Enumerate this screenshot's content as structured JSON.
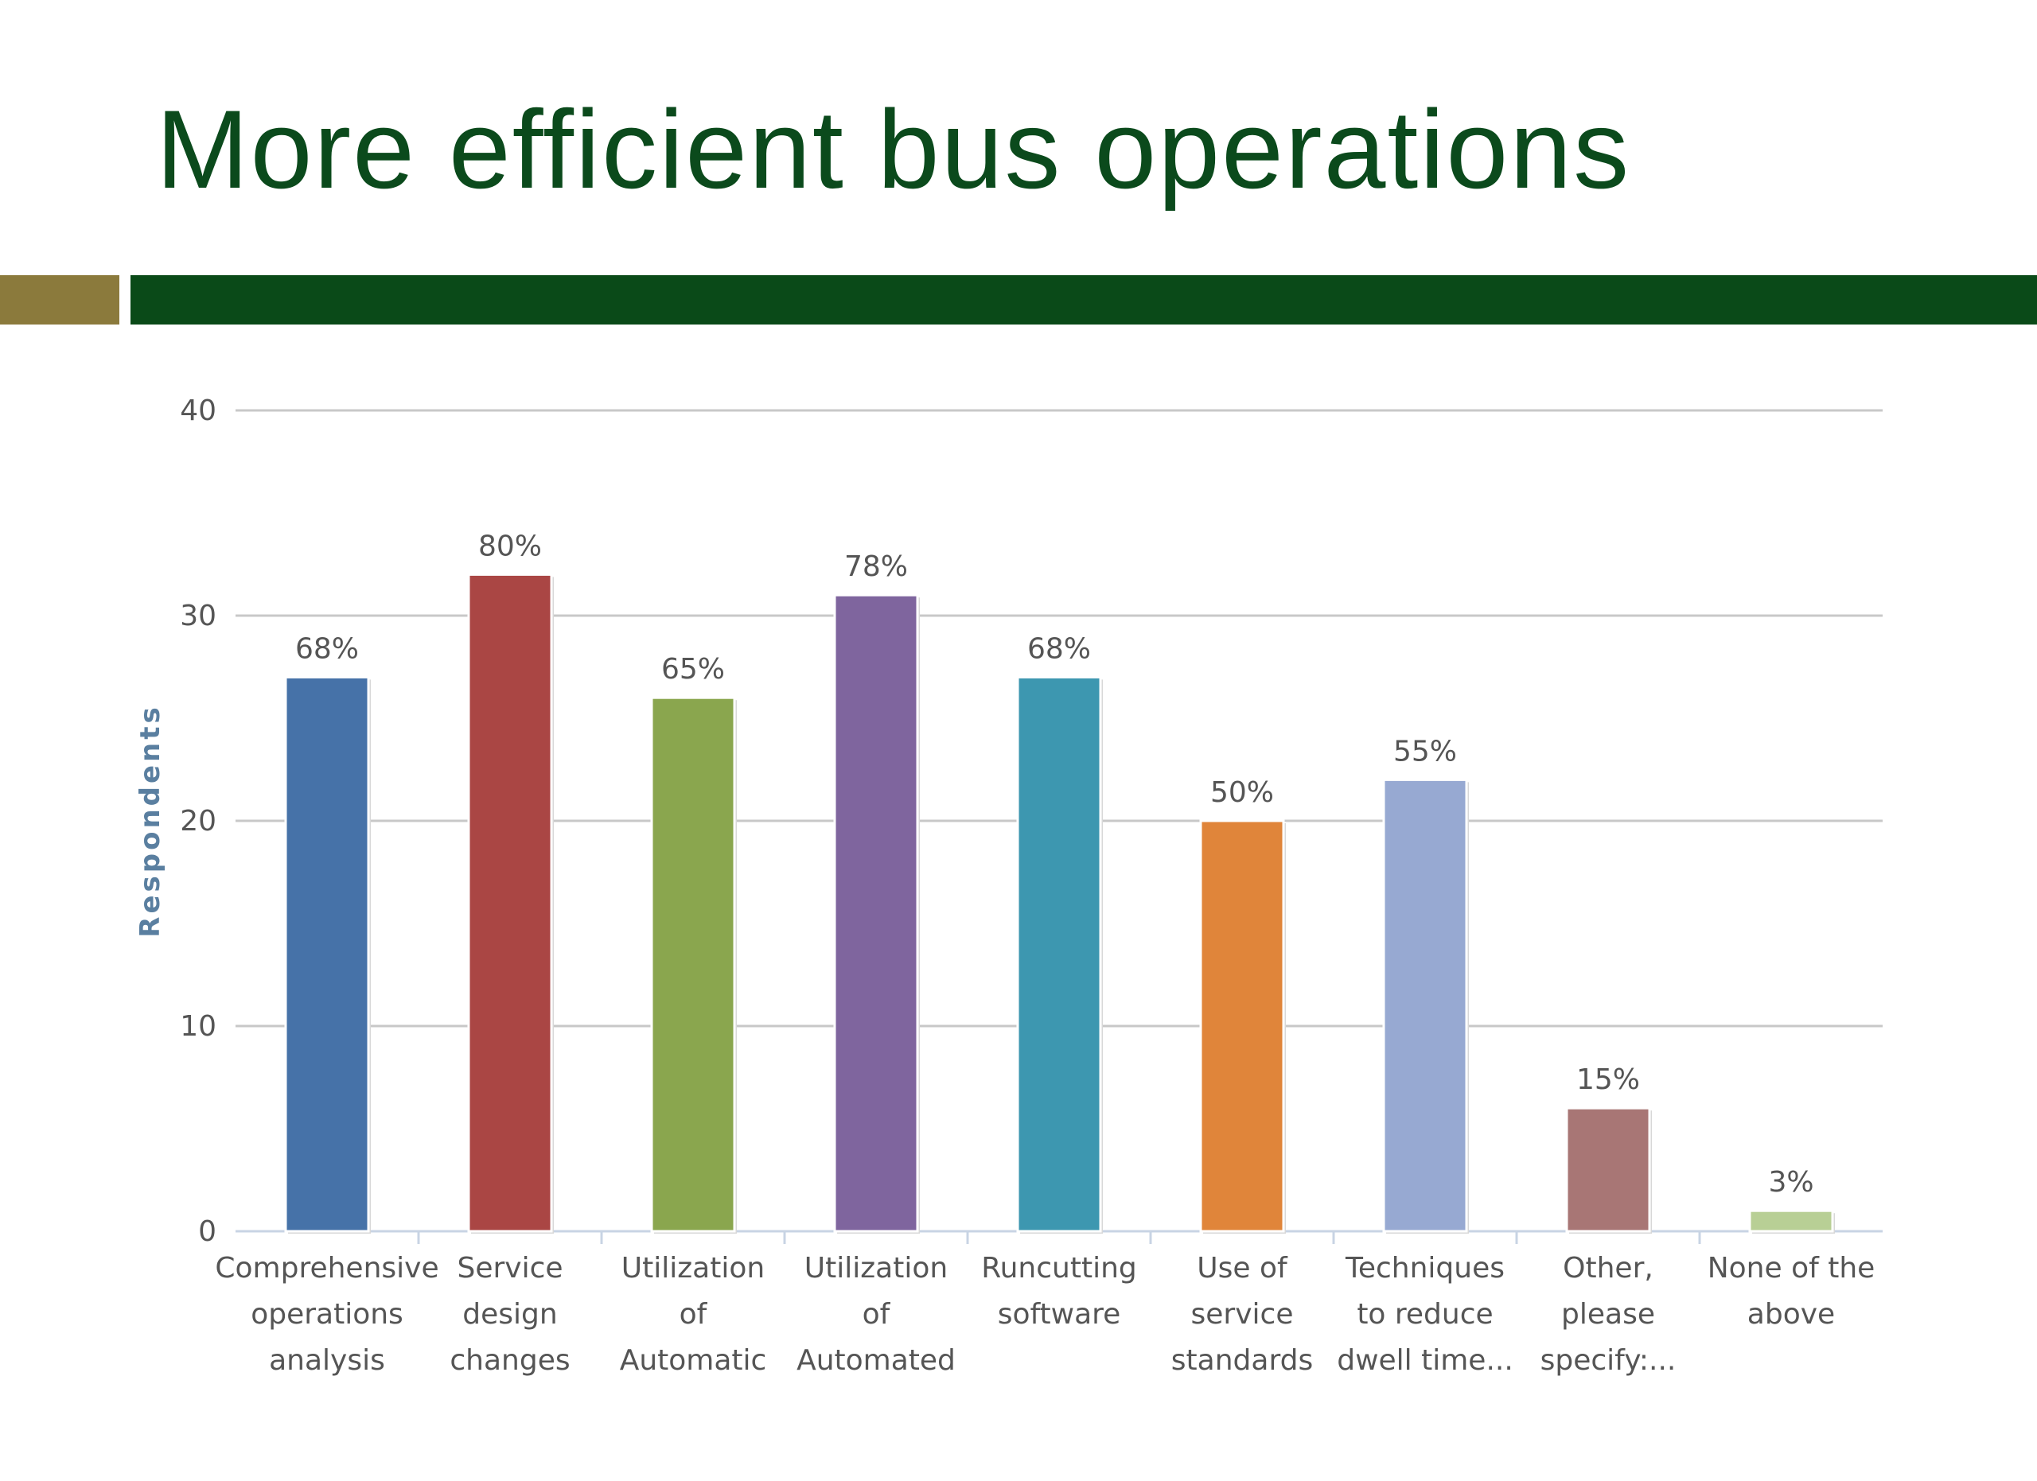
{
  "slide": {
    "title": "More efficient bus operations"
  },
  "colors": {
    "title": "#0b4a1c",
    "accent_gold": "#8b7a3c",
    "accent_green": "#0a4a18",
    "gridline": "#c8c8c8",
    "axis": "#c8d4e4"
  },
  "chart_data": {
    "type": "bar",
    "title": "",
    "xlabel": "",
    "ylabel": "Respondents",
    "ylim": [
      0,
      40
    ],
    "yticks": [
      0,
      10,
      20,
      30,
      40
    ],
    "grid": true,
    "legend": "none",
    "categories": [
      [
        "Comprehensive",
        "operations",
        "analysis"
      ],
      [
        "Service",
        "design",
        "changes"
      ],
      [
        "Utilization",
        "of",
        "Automatic"
      ],
      [
        "Utilization",
        "of",
        "Automated"
      ],
      [
        "Runcutting",
        "software"
      ],
      [
        "Use of",
        "service",
        "standards"
      ],
      [
        "Techniques",
        "to reduce",
        "dwell time..."
      ],
      [
        "Other,",
        "please",
        "specify:..."
      ],
      [
        "None of the",
        "above"
      ]
    ],
    "values": [
      27,
      32,
      26,
      31,
      27,
      20,
      22,
      6,
      1
    ],
    "data_labels": [
      "68%",
      "80%",
      "65%",
      "78%",
      "68%",
      "50%",
      "55%",
      "15%",
      "3%"
    ],
    "bar_colors": [
      "#4672a8",
      "#aa4644",
      "#8aa64e",
      "#7f659e",
      "#3d97b0",
      "#e0853a",
      "#97a9d2",
      "#a87675",
      "#b8cf95"
    ]
  }
}
